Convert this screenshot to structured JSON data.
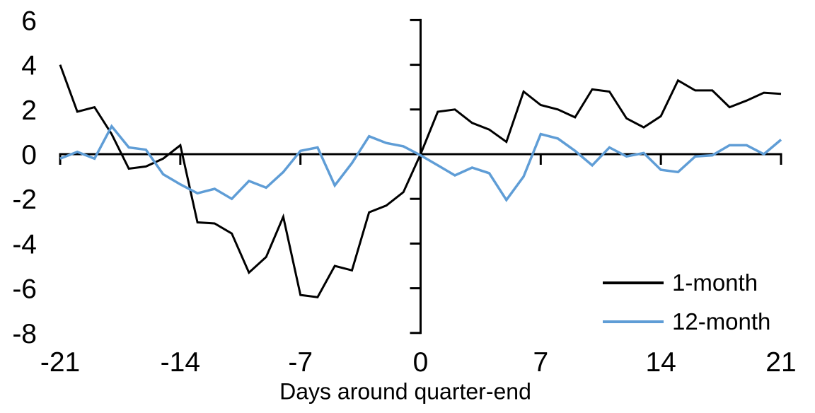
{
  "background": "#ffffff",
  "text_color": "#000000",
  "chart_data": {
    "type": "line",
    "title": "",
    "xlabel": "Days around quarter-end",
    "ylabel": "",
    "xlim": [
      -21,
      21
    ],
    "ylim": [
      -8,
      6
    ],
    "x_ticks": [
      -21,
      -14,
      -7,
      0,
      7,
      14,
      21
    ],
    "y_ticks": [
      6,
      4,
      2,
      0,
      -2,
      -4,
      -6,
      -8
    ],
    "grid": false,
    "legend_position": "lower-right",
    "x": [
      -21,
      -20,
      -19,
      -18,
      -17,
      -16,
      -15,
      -14,
      -13,
      -12,
      -11,
      -10,
      -9,
      -8,
      -7,
      -6,
      -5,
      -4,
      -3,
      -2,
      -1,
      0,
      1,
      2,
      3,
      4,
      5,
      6,
      7,
      8,
      9,
      10,
      11,
      12,
      13,
      14,
      15,
      16,
      17,
      18,
      19,
      20,
      21
    ],
    "series": [
      {
        "name": "1-month",
        "color": "#000000",
        "values": [
          4.0,
          1.9,
          2.1,
          0.9,
          -0.65,
          -0.55,
          -0.2,
          0.4,
          -3.05,
          -3.1,
          -3.55,
          -5.3,
          -4.6,
          -2.8,
          -6.3,
          -6.4,
          -5.0,
          -5.2,
          -2.6,
          -2.3,
          -1.7,
          0.0,
          1.9,
          2.0,
          1.4,
          1.1,
          0.55,
          2.8,
          2.2,
          2.0,
          1.65,
          2.9,
          2.8,
          1.6,
          1.2,
          1.7,
          3.3,
          2.85,
          2.85,
          2.1,
          2.4,
          2.75,
          2.7
        ]
      },
      {
        "name": "12-month",
        "color": "#5f9dd6",
        "values": [
          -0.2,
          0.1,
          -0.2,
          1.25,
          0.3,
          0.2,
          -0.9,
          -1.35,
          -1.75,
          -1.55,
          -2.0,
          -1.2,
          -1.5,
          -0.8,
          0.15,
          0.3,
          -1.4,
          -0.4,
          0.8,
          0.5,
          0.35,
          -0.05,
          -0.5,
          -0.95,
          -0.6,
          -0.85,
          -2.05,
          -1.0,
          0.9,
          0.7,
          0.15,
          -0.5,
          0.3,
          -0.1,
          0.05,
          -0.7,
          -0.8,
          -0.1,
          -0.05,
          0.4,
          0.4,
          0.0,
          0.65
        ]
      }
    ]
  }
}
